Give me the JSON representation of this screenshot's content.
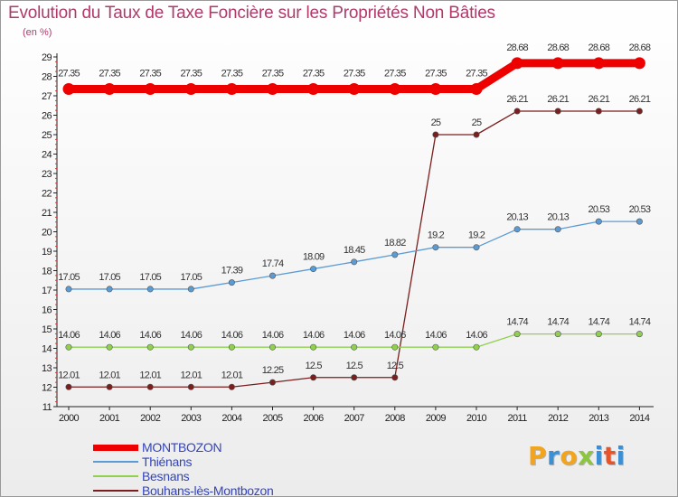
{
  "header": {
    "title": "Evolution du Taux de Taxe Foncière sur les Propriétés Non Bâties",
    "unit": "(en %)"
  },
  "logo": {
    "letters": [
      "P",
      "r",
      "o",
      "x",
      "i",
      "t",
      "i"
    ],
    "colors": [
      "#f2a41c",
      "#3b8fd4",
      "#f2a41c",
      "#8cc63f",
      "#3b8fd4",
      "#e8532a",
      "#3b8fd4"
    ]
  },
  "chart_data": {
    "type": "line",
    "title": "Evolution du Taux de Taxe Foncière sur les Propriétés Non Bâties",
    "ylabel": "(en %)",
    "xlabel": "",
    "grid": false,
    "ylim": [
      11,
      29
    ],
    "yticks": [
      "11",
      "12",
      "13",
      "14",
      "15",
      "16",
      "17",
      "18",
      "19",
      "20",
      "21",
      "22",
      "23",
      "24",
      "25",
      "26",
      "27",
      "28",
      "29"
    ],
    "categories": [
      "2000",
      "2001",
      "2002",
      "2003",
      "2004",
      "2005",
      "2006",
      "2007",
      "2008",
      "2009",
      "2010",
      "2011",
      "2012",
      "2013",
      "2014"
    ],
    "series": [
      {
        "name": "MONTBOZON",
        "color": "#ee0000",
        "values": [
          27.35,
          27.35,
          27.35,
          27.35,
          27.35,
          27.35,
          27.35,
          27.35,
          27.35,
          27.35,
          27.35,
          28.68,
          28.68,
          28.68,
          28.68
        ],
        "labels": [
          "27.35",
          "27.35",
          "27.35",
          "27.35",
          "27.35",
          "27.35",
          "27.35",
          "27.35",
          "27.35",
          "27.35",
          "27.35",
          "28.68",
          "28.68",
          "28.68",
          "28.68"
        ]
      },
      {
        "name": "Thiénans",
        "color": "#5b9bd5",
        "values": [
          17.05,
          17.05,
          17.05,
          17.05,
          17.39,
          17.74,
          18.09,
          18.45,
          18.82,
          19.2,
          19.2,
          20.13,
          20.13,
          20.53,
          20.53
        ],
        "labels": [
          "17.05",
          "17.05",
          "17.05",
          "17.05",
          "17.39",
          "17.74",
          "18.09",
          "18.45",
          "18.82",
          "19.2",
          "19.2",
          "20.13",
          "20.13",
          "20.53",
          "20.53"
        ]
      },
      {
        "name": "Besnans",
        "color": "#8fd14f",
        "values": [
          14.06,
          14.06,
          14.06,
          14.06,
          14.06,
          14.06,
          14.06,
          14.06,
          14.06,
          14.06,
          14.06,
          14.74,
          14.74,
          14.74,
          14.74
        ],
        "labels": [
          "14.06",
          "14.06",
          "14.06",
          "14.06",
          "14.06",
          "14.06",
          "14.06",
          "14.06",
          "14.06",
          "14.06",
          "14.06",
          "14.74",
          "14.74",
          "14.74",
          "14.74"
        ]
      },
      {
        "name": "Bouhans-lès-Montbozon",
        "color": "#7a1e1e",
        "values": [
          12.01,
          12.01,
          12.01,
          12.01,
          12.01,
          12.25,
          12.5,
          12.5,
          12.5,
          25,
          25,
          26.21,
          26.21,
          26.21,
          26.21
        ],
        "labels": [
          "12.01",
          "12.01",
          "12.01",
          "12.01",
          "12.01",
          "12.25",
          "12.5",
          "12.5",
          "12.5",
          "25",
          "25",
          "26.21",
          "26.21",
          "26.21",
          "26.21"
        ]
      }
    ],
    "legend_position": "bottom-left"
  }
}
